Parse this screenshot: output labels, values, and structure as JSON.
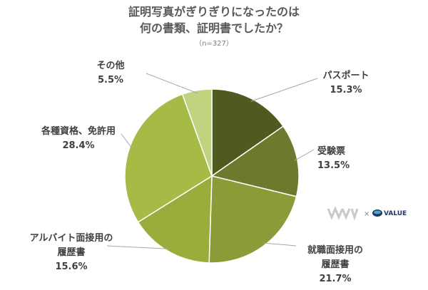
{
  "chart_data": {
    "type": "pie",
    "title_lines": [
      "証明写真がぎりぎりになったのは",
      "何の書類、証明書でしたか？"
    ],
    "subtitle": "（n=327）",
    "unit": "%",
    "slices": [
      {
        "label_lines": [
          "パスポート"
        ],
        "value": 15.3,
        "value_text": "15.3%",
        "color": "#4f5a21"
      },
      {
        "label_lines": [
          "受験票"
        ],
        "value": 13.5,
        "value_text": "13.5%",
        "color": "#6b7a2c"
      },
      {
        "label_lines": [
          "就職面接用の",
          "履歴書"
        ],
        "value": 21.7,
        "value_text": "21.7%",
        "color": "#8a9c37"
      },
      {
        "label_lines": [
          "アルバイト面接用の",
          "履歴書"
        ],
        "value": 15.6,
        "value_text": "15.6%",
        "color": "#98ad3c"
      },
      {
        "label_lines": [
          "各種資格、免許用"
        ],
        "value": 28.4,
        "value_text": "28.4%",
        "color": "#a6bb45"
      },
      {
        "label_lines": [
          "その他"
        ],
        "value": 5.5,
        "value_text": "5.5%",
        "color": "#c0d37e"
      }
    ]
  },
  "footer": {
    "cross": "×",
    "brand": "VALUE"
  },
  "colors": {
    "slice_border": "#ffffff",
    "leader": "#a6a6a6",
    "brand": "#1f3864",
    "logo_mark": "#c9c9c9"
  }
}
